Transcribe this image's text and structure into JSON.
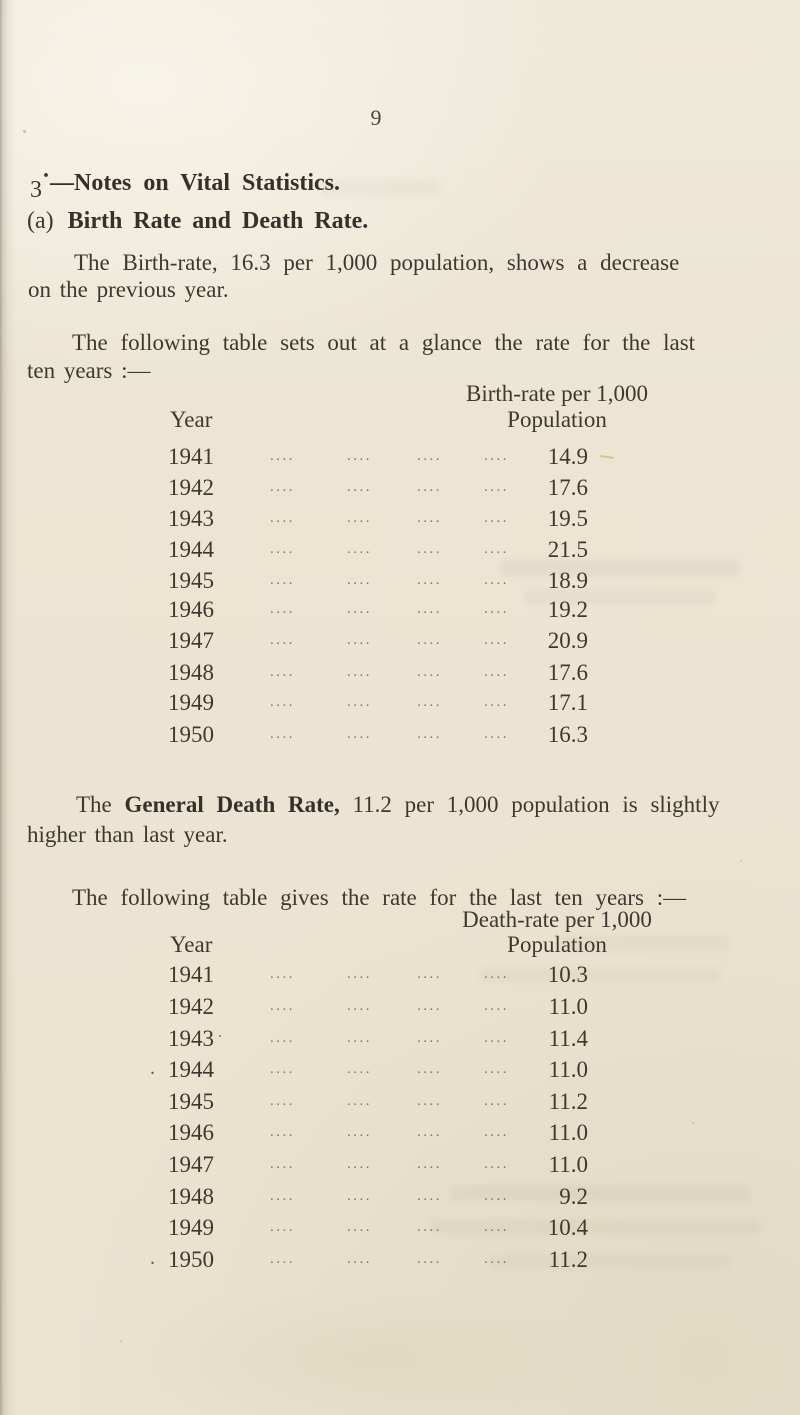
{
  "page_number": "9",
  "section": {
    "number": "3",
    "raised_dot": "·",
    "title": "—Notes on Vital Statistics."
  },
  "subsection": {
    "label": "(a)",
    "title": "Birth Rate and Death Rate."
  },
  "birth": {
    "para_line1": "The Birth-rate, 16.3 per 1,000 population, shows a decrease",
    "para_line2": "on the previous year.",
    "intro_line1": "The following table sets out at a glance the rate for the last",
    "intro_line2": "ten years :—",
    "table": {
      "header_line1": "Birth-rate per 1,000",
      "header_line2": "Population",
      "year_label": "Year",
      "leader": "....",
      "rows": [
        {
          "year": "1941",
          "value": "14.9"
        },
        {
          "year": "1942",
          "value": "17.6"
        },
        {
          "year": "1943",
          "value": "19.5"
        },
        {
          "year": "1944",
          "value": "21.5"
        },
        {
          "year": "1945",
          "value": "18.9"
        },
        {
          "year": "1946",
          "value": "19.2"
        },
        {
          "year": "1947",
          "value": "20.9"
        },
        {
          "year": "1948",
          "value": "17.6"
        },
        {
          "year": "1949",
          "value": "17.1"
        },
        {
          "year": "1950",
          "value": "16.3"
        }
      ]
    }
  },
  "death": {
    "para_pre": "The ",
    "para_bold": "General Death Rate,",
    "para_rest": " 11.2 per 1,000 population is slightly",
    "para_line2": "higher than last year.",
    "intro": "The following table gives the rate for the last ten years :—",
    "table": {
      "header_line1": "Death-rate per 1,000",
      "header_line2": "Population",
      "year_label": "Year",
      "leader": "....",
      "rows": [
        {
          "year": "1941",
          "value": "10.3"
        },
        {
          "year": "1942",
          "value": "11.0"
        },
        {
          "year": "1943",
          "value": "11.4",
          "stray_after": true
        },
        {
          "year": "1944",
          "value": "11.0",
          "stray_before": true
        },
        {
          "year": "1945",
          "value": "11.2"
        },
        {
          "year": "1946",
          "value": "11.0"
        },
        {
          "year": "1947",
          "value": "11.0"
        },
        {
          "year": "1948",
          "value": "9.2"
        },
        {
          "year": "1949",
          "value": "10.4"
        },
        {
          "year": "1950",
          "value": "11.2",
          "stray_before": true
        }
      ]
    }
  }
}
